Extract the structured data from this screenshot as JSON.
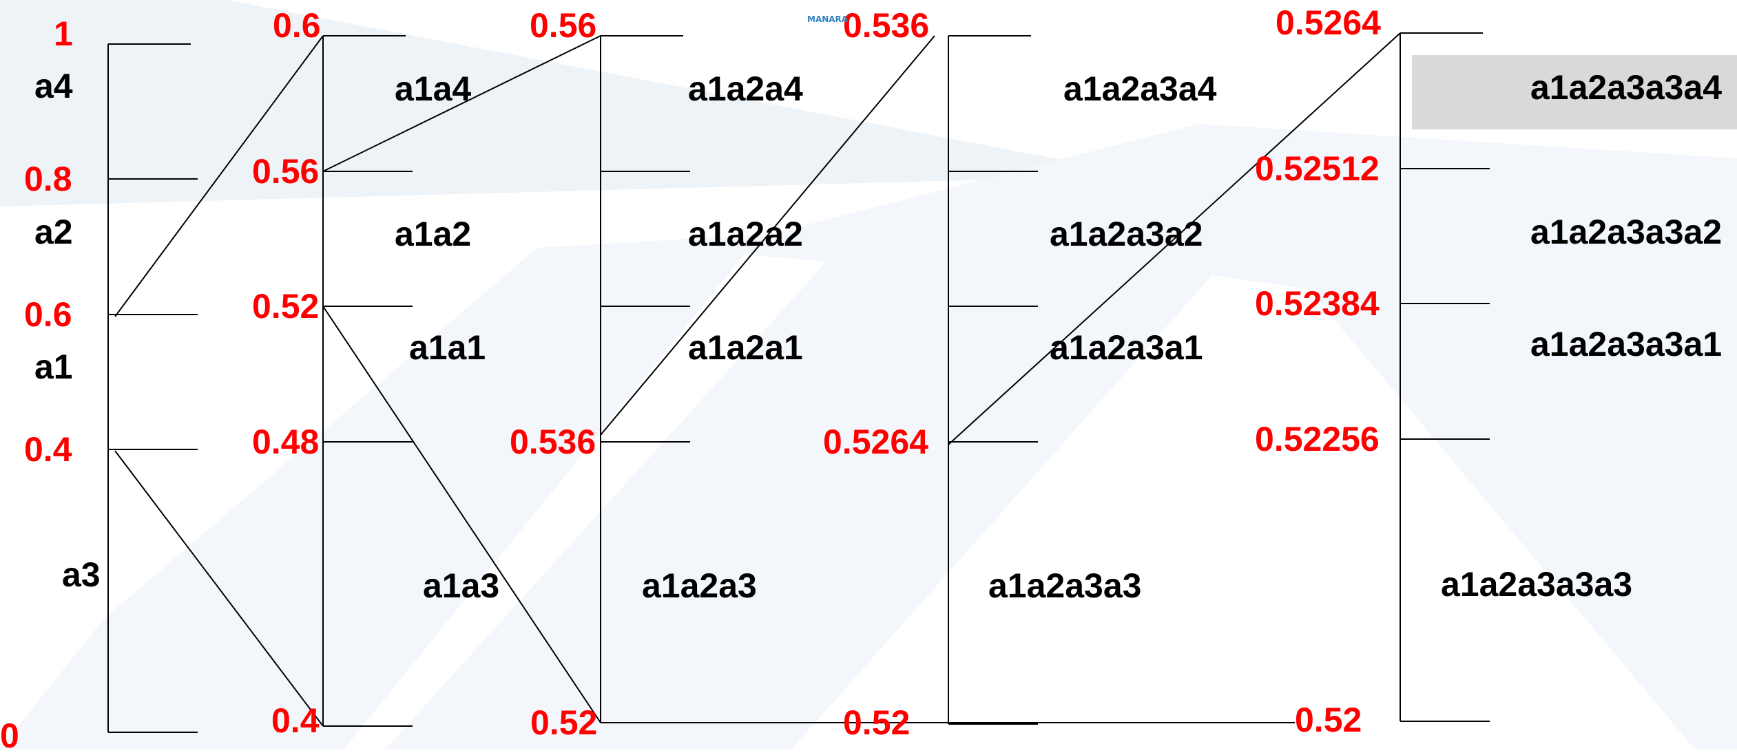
{
  "watermark": {
    "text": "MANARA"
  },
  "colors": {
    "value": "#ff0000",
    "symbol": "#000000",
    "highlight": "#d9d9d9",
    "line": "#000000",
    "watermark": "#e4ecf4"
  },
  "columns": [
    {
      "values": [
        "1",
        "0.8",
        "0.6",
        "0.4",
        "0"
      ],
      "symbols": [
        "a4",
        "a2",
        "a1",
        "a3"
      ]
    },
    {
      "values": [
        "0.6",
        "0.56",
        "0.52",
        "0.48",
        "0.4"
      ],
      "symbols": [
        "a1a4",
        "a1a2",
        "a1a1",
        "a1a3"
      ]
    },
    {
      "values": [
        "0.56",
        "0.536",
        "0.52"
      ],
      "symbols": [
        "a1a2a4",
        "a1a2a2",
        "a1a2a1",
        "a1a2a3"
      ]
    },
    {
      "values": [
        "0.536",
        "0.5264",
        "0.52"
      ],
      "symbols": [
        "a1a2a3a4",
        "a1a2a3a2",
        "a1a2a3a1",
        "a1a2a3a3"
      ]
    },
    {
      "values": [
        "0.5264",
        "0.52512",
        "0.52384",
        "0.52256",
        "0.52"
      ],
      "symbols": [
        "a1a2a3a3a4",
        "a1a2a3a3a2",
        "a1a2a3a3a1",
        "a1a2a3a3a3"
      ]
    }
  ]
}
